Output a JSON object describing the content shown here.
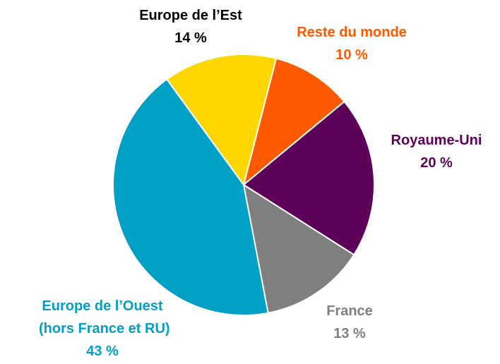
{
  "chart_data": {
    "type": "pie",
    "categories": [
      "Reste du monde",
      "Royaume-Uni",
      "France",
      "Europe de l’Ouest\n(hors France et RU)",
      "Europe de l’Est"
    ],
    "values": [
      10,
      20,
      13,
      43,
      14
    ],
    "value_labels": [
      "10 %",
      "20 %",
      "13 %",
      "43 %",
      "14 %"
    ],
    "colors": [
      "#ff5a00",
      "#5c0058",
      "#7f7f7f",
      "#00a0c6",
      "#ffd700"
    ],
    "label_colors": [
      "#ff5a00",
      "#5c0058",
      "#7f7f7f",
      "#00a0c6",
      "#000000"
    ]
  }
}
